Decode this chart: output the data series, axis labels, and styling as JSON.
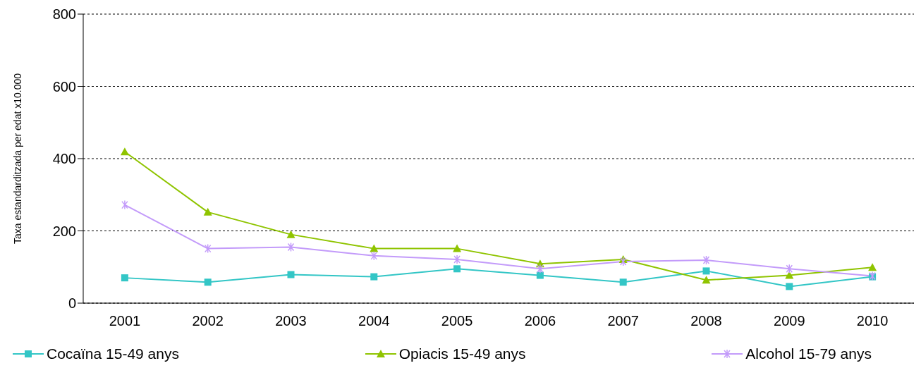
{
  "chart_data": {
    "type": "line",
    "ylabel": "Taxa estandarditzada per edat x10.000",
    "categories": [
      "2001",
      "2002",
      "2003",
      "2004",
      "2005",
      "2006",
      "2007",
      "2008",
      "2009",
      "2010"
    ],
    "series": [
      {
        "name": "Cocaïna 15-49 anys",
        "color": "#33c6c6",
        "marker": "square",
        "values": [
          70,
          58,
          79,
          73,
          95,
          77,
          58,
          89,
          46,
          73
        ]
      },
      {
        "name": "Opiacis 15-49 anys",
        "color": "#8fc400",
        "marker": "triangle",
        "values": [
          419,
          252,
          190,
          151,
          151,
          109,
          121,
          64,
          77,
          99
        ]
      },
      {
        "name": "Alcohol 15-79 anys",
        "color": "#c39bfa",
        "marker": "cross",
        "values": [
          272,
          151,
          155,
          131,
          121,
          95,
          115,
          119,
          95,
          75
        ]
      }
    ],
    "ylim": [
      0,
      800
    ],
    "yticks": [
      0,
      200,
      400,
      600,
      800
    ],
    "grid": "y",
    "legend": "bottom"
  }
}
